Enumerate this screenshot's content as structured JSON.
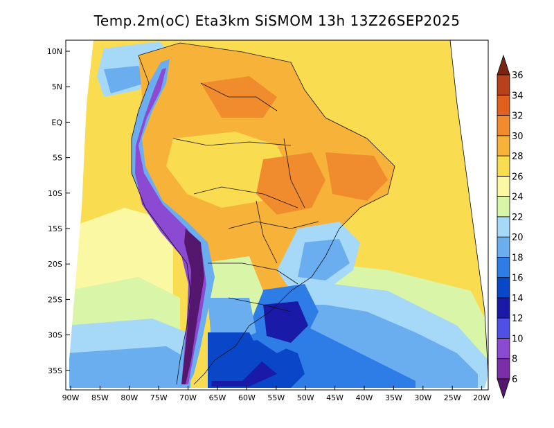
{
  "title": "Temp.2m(oC) Eta3km SiSMOM 13h 13Z26SEP2025",
  "lat_labels": [
    "10N",
    "5N",
    "EQ",
    "5S",
    "10S",
    "15S",
    "20S",
    "25S",
    "30S",
    "35S"
  ],
  "lon_labels": [
    "90W",
    "85W",
    "80W",
    "75W",
    "70W",
    "65W",
    "60W",
    "55W",
    "50W",
    "45W",
    "40W",
    "35W",
    "30W",
    "25W",
    "20W"
  ],
  "colorbar": {
    "levels": [
      "6",
      "8",
      "10",
      "12",
      "14",
      "16",
      "18",
      "20",
      "22",
      "24",
      "26",
      "28",
      "30",
      "32",
      "34",
      "36"
    ],
    "colors": [
      "#55166e",
      "#7b2ea8",
      "#8c49d2",
      "#5050e6",
      "#1a1aa8",
      "#0a46c8",
      "#2e7de6",
      "#6aaef0",
      "#a6d8f7",
      "#d8f5a8",
      "#fbf8a4",
      "#f9dc50",
      "#f7b23a",
      "#f08c2d",
      "#e2601e",
      "#b6411a",
      "#7a2412"
    ]
  }
}
